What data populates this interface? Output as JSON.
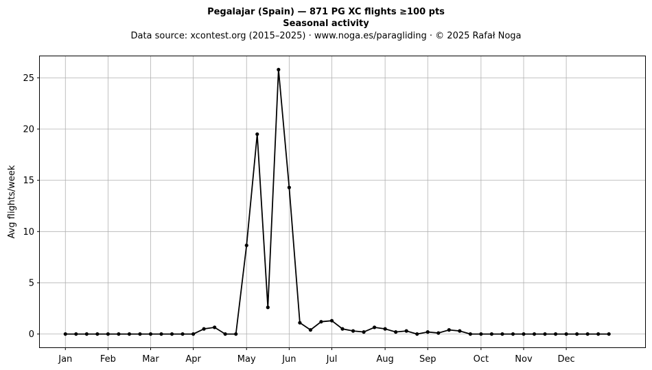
{
  "chart_data": {
    "type": "line",
    "title": "Pegalajar (Spain)  —  871 PG XC flights ≥100 pts",
    "subtitle": "Seasonal activity",
    "source": "Data source: xcontest.org (2015–2025)  ·  www.noga.es/paragliding  ·  © 2025 Rafał Noga",
    "xlabel": "",
    "ylabel": "Avg flights/week",
    "x_unit": "week of year",
    "xlim": [
      -2.4,
      54.4
    ],
    "ylim": [
      -1.3,
      27.1
    ],
    "grid": true,
    "month_ticks": [
      {
        "label": "Jan",
        "week": 0
      },
      {
        "label": "Feb",
        "week": 4
      },
      {
        "label": "Mar",
        "week": 8
      },
      {
        "label": "Apr",
        "week": 12
      },
      {
        "label": "May",
        "week": 17
      },
      {
        "label": "Jun",
        "week": 21
      },
      {
        "label": "Jul",
        "week": 25
      },
      {
        "label": "Aug",
        "week": 30
      },
      {
        "label": "Sep",
        "week": 34
      },
      {
        "label": "Oct",
        "week": 39
      },
      {
        "label": "Nov",
        "week": 43
      },
      {
        "label": "Dec",
        "week": 47
      }
    ],
    "y_ticks": [
      0,
      5,
      10,
      15,
      20,
      25
    ],
    "series": [
      {
        "name": "",
        "color": "#000000",
        "x": [
          0,
          1,
          2,
          3,
          4,
          5,
          6,
          7,
          8,
          9,
          10,
          11,
          12,
          13,
          14,
          15,
          16,
          17,
          18,
          19,
          20,
          21,
          22,
          23,
          24,
          25,
          26,
          27,
          28,
          29,
          30,
          31,
          32,
          33,
          34,
          35,
          36,
          37,
          38,
          39,
          40,
          41,
          42,
          43,
          44,
          45,
          46,
          47,
          48,
          49,
          50,
          51
        ],
        "values": [
          0,
          0,
          0,
          0,
          0,
          0,
          0,
          0,
          0,
          0,
          0,
          0,
          0,
          0.5,
          0.65,
          0,
          0,
          8.65,
          19.5,
          2.6,
          25.8,
          14.3,
          1.1,
          0.4,
          1.2,
          1.3,
          0.5,
          0.3,
          0.2,
          0.65,
          0.5,
          0.2,
          0.3,
          0,
          0.2,
          0.1,
          0.4,
          0.3,
          0,
          0,
          0,
          0,
          0,
          0,
          0,
          0,
          0,
          0,
          0,
          0,
          0,
          0
        ]
      }
    ]
  }
}
